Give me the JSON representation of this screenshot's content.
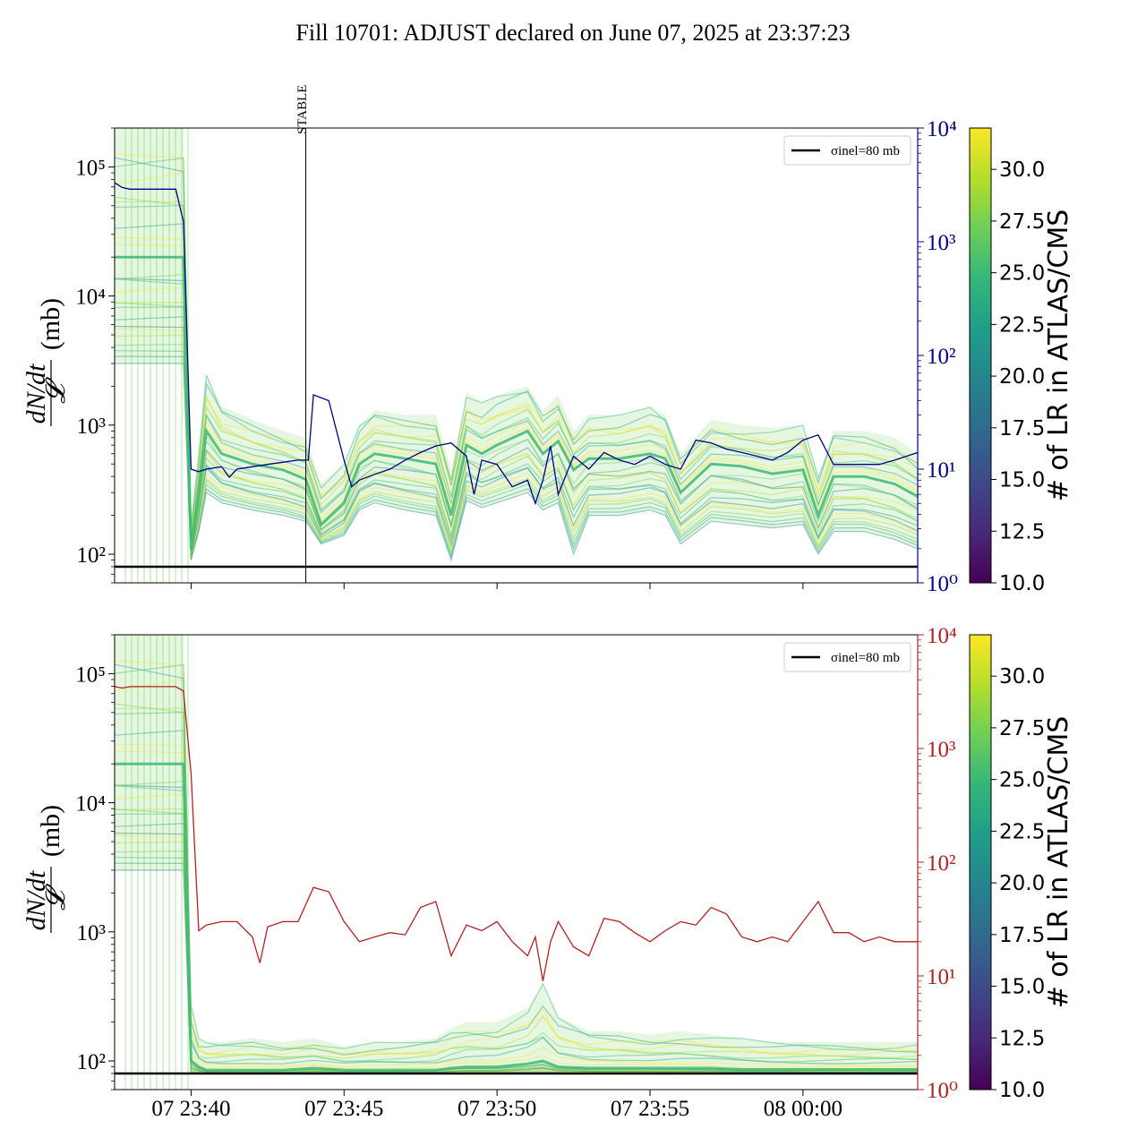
{
  "title": "Fill 10701: ADJUST declared on June 07, 2025 at 23:37:23",
  "colors": {
    "top_right_axis": "#00008b",
    "bottom_right_axis": "#b22222",
    "reference_line": "#000000",
    "viridis": [
      "#440154",
      "#482878",
      "#3e4989",
      "#31688e",
      "#26828e",
      "#1f9e89",
      "#35b779",
      "#6ece58",
      "#b5de2b",
      "#fde725"
    ]
  },
  "legend_label": "σinel=80 mb",
  "stable_label": "STABLE",
  "colorbar": {
    "label": "# of LR in ATLAS/CMS",
    "range": [
      10.0,
      32.0
    ],
    "ticks": [
      "10.0",
      "12.5",
      "15.0",
      "17.5",
      "20.0",
      "22.5",
      "25.0",
      "27.5",
      "30.0"
    ]
  },
  "x_ticks": [
    "07 23:40",
    "07 23:45",
    "07 23:50",
    "07 23:55",
    "08 00:00"
  ],
  "chart_data": [
    {
      "type": "line",
      "panel": "top",
      "ylabel": "dN/dt / 𝓛 (mb)",
      "ylabel_num": "dN/dt",
      "ylabel_den": "𝓛",
      "ylabel_unit": "(mb)",
      "yscale": "log",
      "ylim": [
        60,
        200000
      ],
      "y_ticks": [
        "10²",
        "10³",
        "10⁴",
        "10⁵"
      ],
      "reference_line": 80,
      "right_axis": {
        "yscale": "log",
        "ylim": [
          1,
          10000
        ],
        "ticks": [
          "10⁰",
          "10¹",
          "10²",
          "10³",
          "10⁴"
        ],
        "color": "#00008b"
      },
      "stable_marker_time": "23:43:45",
      "right_series": {
        "x": [
          "23:37:30",
          "23:37:45",
          "23:38:00",
          "23:39:30",
          "23:39:45",
          "23:40:00",
          "23:40:15",
          "23:40:30",
          "23:41:00",
          "23:41:15",
          "23:41:30",
          "23:42:00",
          "23:42:30",
          "23:43:00",
          "23:43:30",
          "23:43:50",
          "23:44:00",
          "23:44:30",
          "23:45:00",
          "23:45:15",
          "23:45:30",
          "23:46:00",
          "23:46:30",
          "23:47:00",
          "23:47:30",
          "23:48:00",
          "23:48:30",
          "23:49:00",
          "23:49:15",
          "23:49:30",
          "23:50:00",
          "23:50:30",
          "23:51:00",
          "23:51:15",
          "23:51:30",
          "23:51:45",
          "23:52:00",
          "23:52:30",
          "23:53:00",
          "23:53:30",
          "23:54:00",
          "23:54:30",
          "23:55:00",
          "23:55:30",
          "23:56:00",
          "23:56:30",
          "23:57:00",
          "23:57:30",
          "23:58:00",
          "23:58:30",
          "23:59:00",
          "23:59:30",
          "00:00:00",
          "00:00:30",
          "00:01:00",
          "00:01:30",
          "00:02:00",
          "00:02:30",
          "00:03:00",
          "00:03:45"
        ],
        "y": [
          3300,
          3000,
          2900,
          2900,
          1500,
          10,
          9.5,
          10,
          10.5,
          8.5,
          10,
          10.5,
          11,
          11.5,
          12,
          12,
          45,
          40,
          12,
          7,
          8,
          9,
          10,
          12,
          14,
          16,
          17,
          13,
          6,
          12,
          11,
          7,
          8,
          5,
          8,
          16,
          6,
          13,
          10,
          14,
          12,
          11,
          13,
          11,
          10,
          18,
          17,
          15,
          14,
          13,
          12,
          14,
          18,
          20,
          11,
          11,
          11,
          11,
          12,
          14
        ]
      },
      "lr_series_note": "per-LR dN/dt/L lines, colored by # of LR",
      "lr_envelope": {
        "x": [
          "23:37:30",
          "23:39:45",
          "23:40:00",
          "23:40:15",
          "23:40:30",
          "23:41:00",
          "23:42:00",
          "23:43:00",
          "23:43:45",
          "23:44:15",
          "23:45:00",
          "23:45:30",
          "23:46:00",
          "23:47:00",
          "23:48:00",
          "23:48:30",
          "23:49:00",
          "23:49:30",
          "23:50:00",
          "23:51:00",
          "23:51:30",
          "23:52:00",
          "23:52:30",
          "23:53:00",
          "23:54:00",
          "23:55:00",
          "23:55:30",
          "23:56:00",
          "23:57:00",
          "23:58:00",
          "23:59:00",
          "00:00:00",
          "00:00:30",
          "00:01:00",
          "00:02:00",
          "00:03:00",
          "00:03:45"
        ],
        "center": [
          20000,
          20000,
          110,
          300,
          900,
          600,
          500,
          450,
          380,
          170,
          250,
          500,
          600,
          550,
          500,
          200,
          700,
          600,
          700,
          900,
          600,
          750,
          450,
          550,
          550,
          600,
          550,
          300,
          500,
          480,
          420,
          450,
          200,
          400,
          400,
          350,
          280
        ],
        "low": [
          3000,
          3000,
          90,
          150,
          300,
          250,
          220,
          200,
          180,
          120,
          140,
          220,
          250,
          220,
          200,
          90,
          260,
          230,
          250,
          300,
          220,
          250,
          100,
          200,
          200,
          220,
          200,
          120,
          180,
          170,
          160,
          170,
          100,
          150,
          150,
          130,
          110
        ],
        "high": [
          200000,
          200000,
          180,
          600,
          2500,
          1400,
          1100,
          900,
          800,
          350,
          500,
          1000,
          1300,
          1200,
          1200,
          450,
          1800,
          1500,
          1700,
          2000,
          1300,
          1700,
          900,
          1200,
          1200,
          1400,
          1200,
          600,
          1100,
          1000,
          950,
          1000,
          400,
          900,
          900,
          800,
          600
        ]
      }
    },
    {
      "type": "line",
      "panel": "bottom",
      "ylabel": "dN/dt / 𝓛 (mb)",
      "ylabel_num": "dN/dt",
      "ylabel_den": "𝓛",
      "ylabel_unit": "(mb)",
      "yscale": "log",
      "ylim": [
        60,
        200000
      ],
      "y_ticks": [
        "10²",
        "10³",
        "10⁴",
        "10⁵"
      ],
      "reference_line": 80,
      "right_axis": {
        "yscale": "log",
        "ylim": [
          1,
          10000
        ],
        "ticks": [
          "10⁰",
          "10¹",
          "10²",
          "10³",
          "10⁴"
        ],
        "color": "#b22222"
      },
      "right_series": {
        "x": [
          "23:37:30",
          "23:37:45",
          "23:38:00",
          "23:39:30",
          "23:39:45",
          "23:40:00",
          "23:40:15",
          "23:40:30",
          "23:41:00",
          "23:41:30",
          "23:42:00",
          "23:42:15",
          "23:42:30",
          "23:43:00",
          "23:43:30",
          "23:44:00",
          "23:44:30",
          "23:45:00",
          "23:45:30",
          "23:46:00",
          "23:46:30",
          "23:47:00",
          "23:47:30",
          "23:48:00",
          "23:48:30",
          "23:49:00",
          "23:49:30",
          "23:50:00",
          "23:50:30",
          "23:51:00",
          "23:51:15",
          "23:51:30",
          "23:51:45",
          "23:52:00",
          "23:52:30",
          "23:53:00",
          "23:53:30",
          "23:54:00",
          "23:54:30",
          "23:55:00",
          "23:55:30",
          "23:56:00",
          "23:56:30",
          "23:57:00",
          "23:57:30",
          "23:58:00",
          "23:58:30",
          "23:59:00",
          "23:59:30",
          "00:00:00",
          "00:00:30",
          "00:01:00",
          "00:01:30",
          "00:02:00",
          "00:02:30",
          "00:03:00",
          "00:03:45"
        ],
        "y": [
          3500,
          3400,
          3500,
          3500,
          3200,
          600,
          25,
          28,
          30,
          30,
          22,
          13,
          27,
          30,
          30,
          60,
          55,
          30,
          20,
          22,
          24,
          23,
          40,
          45,
          15,
          28,
          25,
          30,
          20,
          15,
          22,
          9,
          20,
          30,
          18,
          15,
          32,
          30,
          24,
          20,
          25,
          30,
          28,
          40,
          35,
          22,
          20,
          22,
          20,
          30,
          45,
          24,
          24,
          20,
          22,
          20,
          20
        ]
      },
      "lr_series_note": "per-LR dN/dt/L lines, colored by # of LR",
      "lr_envelope": {
        "x": [
          "23:37:30",
          "23:39:45",
          "23:40:00",
          "23:40:15",
          "23:40:30",
          "23:41:00",
          "23:42:00",
          "23:43:00",
          "23:44:00",
          "23:45:00",
          "23:46:00",
          "23:47:00",
          "23:48:00",
          "23:48:30",
          "23:49:00",
          "23:50:00",
          "23:51:00",
          "23:51:30",
          "23:52:00",
          "23:53:00",
          "23:54:00",
          "23:55:00",
          "23:56:00",
          "23:57:00",
          "23:58:00",
          "23:59:00",
          "00:00:00",
          "00:01:00",
          "00:02:00",
          "00:03:00",
          "00:03:45"
        ],
        "center": [
          20000,
          20000,
          100,
          90,
          85,
          85,
          85,
          85,
          88,
          85,
          85,
          85,
          85,
          88,
          90,
          90,
          95,
          100,
          90,
          88,
          88,
          88,
          88,
          88,
          86,
          86,
          86,
          86,
          86,
          86,
          86
        ],
        "low": [
          3000,
          3000,
          80,
          80,
          80,
          80,
          80,
          80,
          80,
          80,
          80,
          80,
          80,
          80,
          80,
          80,
          80,
          80,
          80,
          80,
          80,
          80,
          80,
          80,
          80,
          80,
          80,
          80,
          80,
          80,
          80
        ],
        "high": [
          200000,
          200000,
          300,
          150,
          140,
          140,
          150,
          140,
          150,
          130,
          140,
          140,
          150,
          180,
          200,
          200,
          260,
          400,
          220,
          170,
          170,
          160,
          170,
          160,
          150,
          140,
          140,
          140,
          140,
          140,
          140
        ]
      }
    }
  ]
}
